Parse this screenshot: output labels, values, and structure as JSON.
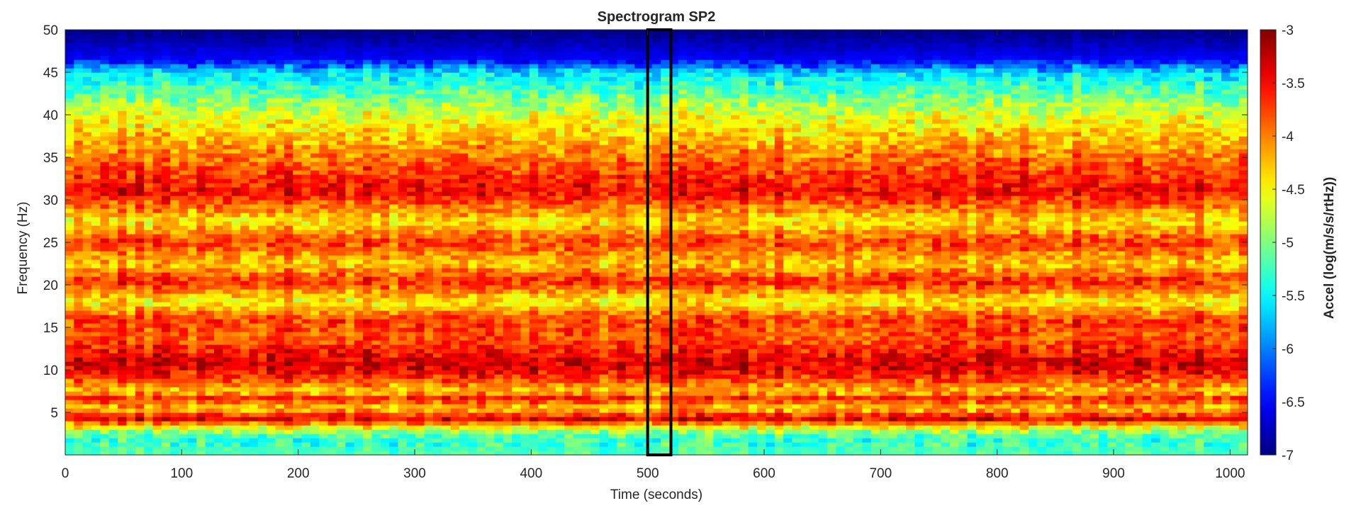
{
  "chart_data": {
    "type": "heatmap",
    "title": "Spectrogram SP2",
    "xlabel": "Time (seconds)",
    "ylabel": "Frequency (Hz)",
    "colorbar_label": "Accel (log(m/s/s/rtHz))",
    "xlim": [
      0,
      1015
    ],
    "ylim": [
      0,
      50
    ],
    "clim": [
      -7,
      -3
    ],
    "xticks": [
      0,
      100,
      200,
      300,
      400,
      500,
      600,
      700,
      800,
      900,
      1000
    ],
    "yticks": [
      5,
      10,
      15,
      20,
      25,
      30,
      35,
      40,
      45,
      50
    ],
    "cticks": [
      -3,
      -3.5,
      -4,
      -4.5,
      -5,
      -5.5,
      -6,
      -6.5,
      -7
    ],
    "colormap": "jet",
    "grid": false,
    "time_bins": 135,
    "freq_bins": 100,
    "band_profile": [
      {
        "freq": 0.5,
        "value": -5.2
      },
      {
        "freq": 2.0,
        "value": -5.3
      },
      {
        "freq": 3.0,
        "value": -4.8
      },
      {
        "freq": 4.3,
        "value": -3.35
      },
      {
        "freq": 5.5,
        "value": -4.3
      },
      {
        "freq": 6.7,
        "value": -3.6
      },
      {
        "freq": 7.5,
        "value": -4.3
      },
      {
        "freq": 9.0,
        "value": -3.7
      },
      {
        "freq": 10.5,
        "value": -3.3
      },
      {
        "freq": 12.0,
        "value": -3.5
      },
      {
        "freq": 13.5,
        "value": -3.8
      },
      {
        "freq": 16.0,
        "value": -3.7
      },
      {
        "freq": 18.0,
        "value": -4.5
      },
      {
        "freq": 20.5,
        "value": -3.6
      },
      {
        "freq": 22.5,
        "value": -4.3
      },
      {
        "freq": 25.0,
        "value": -3.7
      },
      {
        "freq": 27.5,
        "value": -4.4
      },
      {
        "freq": 31.0,
        "value": -3.45
      },
      {
        "freq": 34.0,
        "value": -3.8
      },
      {
        "freq": 37.0,
        "value": -4.2
      },
      {
        "freq": 40.0,
        "value": -4.6
      },
      {
        "freq": 43.0,
        "value": -5.2
      },
      {
        "freq": 45.0,
        "value": -5.6
      },
      {
        "freq": 46.5,
        "value": -6.5
      },
      {
        "freq": 50.0,
        "value": -7.0
      }
    ],
    "highlight_box": {
      "x0": 500,
      "x1": 520,
      "y0": 0,
      "y1": 50
    }
  }
}
